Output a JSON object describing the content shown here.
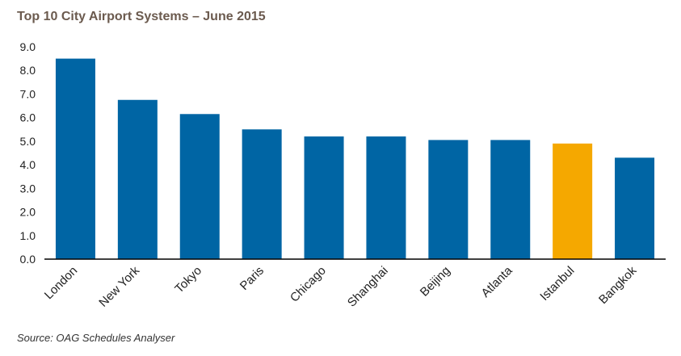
{
  "chart_data": {
    "type": "bar",
    "title": "Top 10 City Airport Systems – June 2015",
    "source": "Source: OAG Schedules Analyser",
    "categories": [
      "London",
      "New York",
      "Tokyo",
      "Paris",
      "Chicago",
      "Shanghai",
      "Beijing",
      "Atlanta",
      "Istanbul",
      "Bangkok"
    ],
    "values": [
      8.5,
      6.75,
      6.15,
      5.5,
      5.2,
      5.2,
      5.05,
      5.05,
      4.9,
      4.3
    ],
    "yticks": [
      "0.0",
      "1.0",
      "2.0",
      "3.0",
      "4.0",
      "5.0",
      "6.0",
      "7.0",
      "8.0",
      "9.0"
    ],
    "ylim": [
      0,
      9
    ],
    "xlabel": "",
    "ylabel": "",
    "grid": false,
    "legend": "none",
    "colors": {
      "bar": "#0065a4",
      "highlight": "#f5a800",
      "title": "#6b5a4e",
      "axis": "#000000"
    },
    "highlight_category": "Istanbul"
  }
}
